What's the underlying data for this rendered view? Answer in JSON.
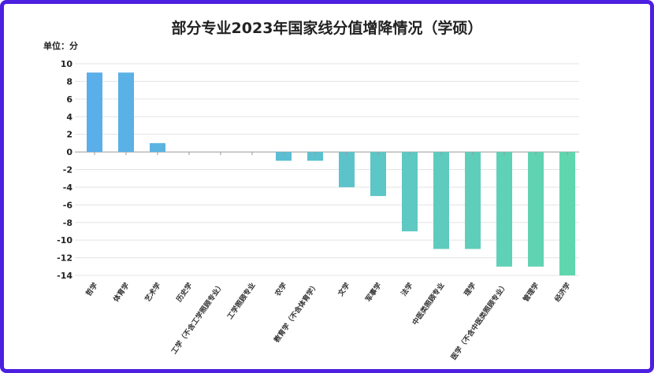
{
  "chart_data": {
    "type": "bar",
    "title": "部分专业2023年国家线分值增降情况（学硕）",
    "unit_label": "单位：分",
    "xlabel": "",
    "ylabel": "",
    "ylim": [
      -14,
      10
    ],
    "yticks": [
      10,
      8,
      6,
      4,
      2,
      0,
      -2,
      -4,
      -6,
      -8,
      -10,
      -12,
      -14
    ],
    "grid": true,
    "categories": [
      "哲学",
      "体育学",
      "艺术学",
      "历史学",
      "工学（不含工学照顾专业）",
      "工学照顾专业",
      "农学",
      "教育学（不含体育学）",
      "文学",
      "军事学",
      "法学",
      "中医类照顾专业",
      "理学",
      "医学（不含中医类照顾专业）",
      "管理学",
      "经济学"
    ],
    "values": [
      9,
      9,
      1,
      0,
      0,
      0,
      -1,
      -1,
      -4,
      -5,
      -9,
      -11,
      -11,
      -13,
      -13,
      -14
    ],
    "colors": {
      "start": "#5aaeea",
      "end": "#5fd6ae",
      "border": "#4d1fe0"
    }
  }
}
